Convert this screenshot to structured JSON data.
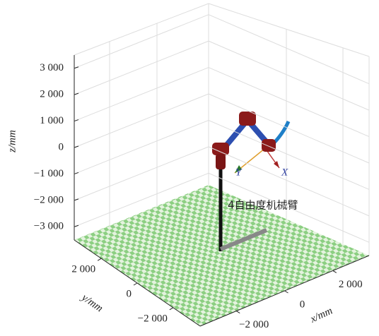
{
  "chart_data": {
    "type": "3d",
    "zlabel": "z/mm",
    "ylabel": "y/mm",
    "xlabel": "x/mm",
    "annotation": "4自由度机械臂",
    "frame_labels": [
      "X",
      "Y"
    ],
    "zlim": [
      -3500,
      3500
    ],
    "zticks": [
      {
        "value": 3000,
        "label": "3 000"
      },
      {
        "value": 2000,
        "label": "2 000"
      },
      {
        "value": 1000,
        "label": "1 000"
      },
      0,
      {
        "value": -1000,
        "label": "−1 000"
      },
      {
        "value": -2000,
        "label": "−2 000"
      },
      {
        "value": -3000,
        "label": "−3 000"
      }
    ],
    "ylim": [
      3500,
      -3500
    ],
    "yticks": [
      {
        "value": 2000,
        "label": "2 000"
      },
      0,
      {
        "value": -2000,
        "label": "−2 000"
      }
    ],
    "xlim": [
      -3500,
      3500
    ],
    "xticks": [
      {
        "value": -2000,
        "label": "−2 000"
      },
      0,
      {
        "value": 2000,
        "label": "2 000"
      }
    ],
    "grid": true
  }
}
